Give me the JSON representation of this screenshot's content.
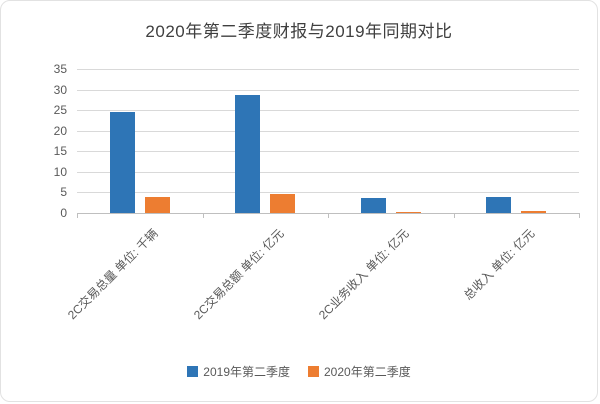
{
  "chart_data": {
    "type": "bar",
    "title": "2020年第二季度财报与2019年同期对比",
    "categories": [
      "2C交易总量 单位: 千辆",
      "2C交易总额 单位: 亿元",
      "2C业务收入 单位: 亿元",
      "总收入 单位: 亿元"
    ],
    "series": [
      {
        "name": "2019年第二季度",
        "color": "#2e75b6",
        "values": [
          24.5,
          28.6,
          3.6,
          4.0
        ]
      },
      {
        "name": "2020年第二季度",
        "color": "#ed7d31",
        "values": [
          4.0,
          4.5,
          0.3,
          0.6
        ]
      }
    ],
    "ylim": [
      0,
      35
    ],
    "yticks": [
      0,
      5,
      10,
      15,
      20,
      25,
      30,
      35
    ],
    "grid": true,
    "legend_position": "bottom"
  }
}
